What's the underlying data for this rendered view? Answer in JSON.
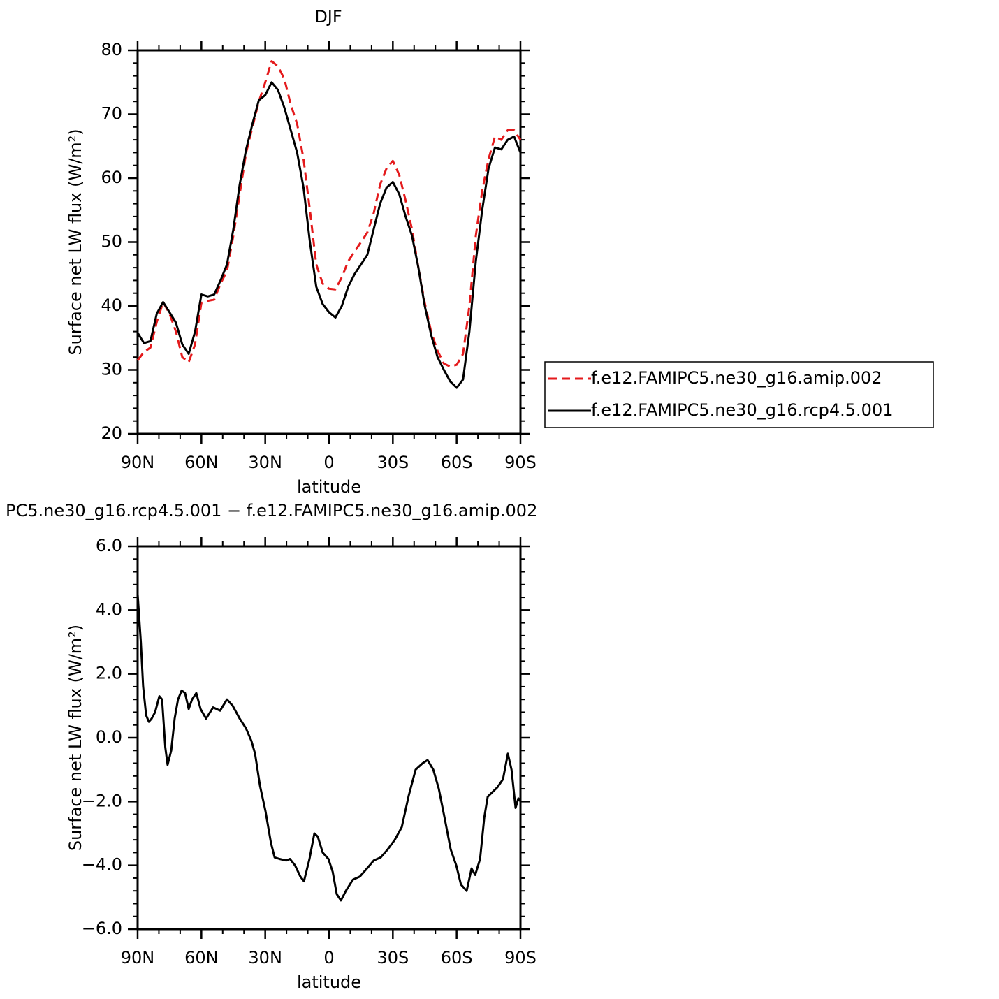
{
  "chart_data": [
    {
      "type": "line",
      "title": "DJF",
      "xlabel": "latitude",
      "ylabel": "Surface net LW flux (W/m²)",
      "x": [
        90,
        87,
        84,
        81,
        78,
        75,
        72,
        69,
        66,
        63,
        60,
        57,
        54,
        51,
        48,
        45,
        42,
        39,
        36,
        33,
        30,
        27,
        24,
        21,
        18,
        15,
        12,
        9,
        6,
        3,
        0,
        -3,
        -6,
        -9,
        -12,
        -15,
        -18,
        -21,
        -24,
        -27,
        -30,
        -33,
        -36,
        -39,
        -42,
        -45,
        -48,
        -51,
        -54,
        -57,
        -60,
        -63,
        -66,
        -69,
        -72,
        -75,
        -78,
        -81,
        -84,
        -87,
        -90
      ],
      "series": [
        {
          "name": "f.e12.FAMIPC5.ne30_g16.amip.002",
          "color": "#e41a1c",
          "dash": true,
          "values": [
            31.5,
            32.8,
            33.5,
            37.5,
            40.6,
            38.8,
            36.0,
            32.0,
            31.2,
            34.0,
            40.5,
            40.8,
            41.0,
            43.5,
            45.5,
            51.0,
            57.5,
            64.0,
            68.0,
            72.0,
            75.0,
            78.3,
            77.5,
            75.5,
            71.5,
            68.5,
            63.0,
            55.0,
            46.5,
            43.5,
            42.7,
            42.6,
            44.5,
            47.0,
            48.5,
            50.0,
            51.5,
            54.5,
            59.0,
            61.5,
            62.7,
            60.5,
            56.5,
            52.0,
            46.0,
            40.5,
            36.0,
            33.0,
            31.0,
            30.5,
            30.8,
            32.5,
            40.0,
            51.0,
            58.0,
            63.0,
            66.5,
            66.0,
            67.5,
            67.5,
            66.0
          ]
        },
        {
          "name": "f.e12.FAMIPC5.ne30_g16.rcp4.5.001",
          "color": "#000000",
          "dash": false,
          "values": [
            35.8,
            34.2,
            34.5,
            38.8,
            40.6,
            39.0,
            37.4,
            34.0,
            32.5,
            36.0,
            41.8,
            41.5,
            41.8,
            44.0,
            46.5,
            52.0,
            59.0,
            64.5,
            68.5,
            72.2,
            73.0,
            75.0,
            73.8,
            71.0,
            67.5,
            64.0,
            58.5,
            50.0,
            43.0,
            40.3,
            39.0,
            38.2,
            40.0,
            43.0,
            45.0,
            46.5,
            48.0,
            52.0,
            56.0,
            58.5,
            59.4,
            57.5,
            54.0,
            51.0,
            46.0,
            40.0,
            35.5,
            32.0,
            30.0,
            28.2,
            27.2,
            28.5,
            36.0,
            47.0,
            55.0,
            61.5,
            64.8,
            64.5,
            66.0,
            66.5,
            64.0
          ]
        }
      ],
      "xlim": [
        90,
        -90
      ],
      "xticks": [
        {
          "value": 90,
          "label": "90N"
        },
        {
          "value": 60,
          "label": "60N"
        },
        {
          "value": 30,
          "label": "30N"
        },
        0,
        {
          "value": -30,
          "label": "30S"
        },
        {
          "value": -60,
          "label": "60S"
        },
        {
          "value": -90,
          "label": "90S"
        }
      ],
      "ylim": [
        20,
        80
      ],
      "yticks": [
        20,
        30,
        40,
        50,
        60,
        70,
        80
      ],
      "legend": "right"
    },
    {
      "type": "line",
      "title": "PC5.ne30_g16.rcp4.5.001 − f.e12.FAMIPC5.ne30_g16.amip.002",
      "xlabel": "latitude",
      "ylabel": "Surface net LW flux (W/m²)",
      "x": [
        90,
        88.5,
        87.4,
        86,
        84.7,
        83.4,
        81.8,
        79.8,
        78.5,
        77,
        75.9,
        74.2,
        72.6,
        71,
        69.3,
        67.7,
        66,
        64.4,
        62.4,
        60.4,
        57.8,
        54.5,
        51.2,
        48,
        45.3,
        42,
        39.1,
        36.5,
        34.8,
        32.5,
        29.9,
        27.3,
        25.6,
        23.3,
        20.1,
        18.4,
        16,
        13.5,
        11.8,
        9.2,
        6.9,
        5.3,
        3,
        0.3,
        -1.7,
        -3.6,
        -5.6,
        -7.9,
        -11.2,
        -14.5,
        -17.8,
        -21,
        -24.3,
        -27.6,
        -30.9,
        -34.2,
        -37.5,
        -40.7,
        -44,
        -46.3,
        -49,
        -51.6,
        -54.3,
        -57.2,
        -59.8,
        -62,
        -64.7,
        -67,
        -68.7,
        -71,
        -73,
        -74.6,
        -76.9,
        -79.2,
        -81.8,
        -84.1,
        -85.8,
        -87.7,
        -89,
        -90
      ],
      "values": [
        4.5,
        3.0,
        1.6,
        0.7,
        0.5,
        0.6,
        0.8,
        1.3,
        1.2,
        -0.3,
        -0.85,
        -0.4,
        0.6,
        1.2,
        1.48,
        1.4,
        0.9,
        1.2,
        1.4,
        0.9,
        0.6,
        0.95,
        0.85,
        1.2,
        1.0,
        0.6,
        0.3,
        -0.1,
        -0.5,
        -1.5,
        -2.3,
        -3.3,
        -3.75,
        -3.8,
        -3.85,
        -3.8,
        -4.0,
        -4.35,
        -4.5,
        -3.8,
        -3.0,
        -3.1,
        -3.6,
        -3.8,
        -4.2,
        -4.9,
        -5.1,
        -4.8,
        -4.45,
        -4.35,
        -4.1,
        -3.85,
        -3.75,
        -3.5,
        -3.2,
        -2.8,
        -1.8,
        -1.0,
        -0.8,
        -0.7,
        -1.0,
        -1.6,
        -2.5,
        -3.5,
        -4.0,
        -4.6,
        -4.8,
        -4.1,
        -4.3,
        -3.8,
        -2.5,
        -1.85,
        -1.7,
        -1.55,
        -1.3,
        -0.5,
        -1.0,
        -2.2,
        -1.9,
        -2.0
      ],
      "color": "#000000",
      "xlim": [
        90,
        -90
      ],
      "xticks": [
        {
          "value": 90,
          "label": "90N"
        },
        {
          "value": 60,
          "label": "60N"
        },
        {
          "value": 30,
          "label": "30N"
        },
        0,
        {
          "value": -30,
          "label": "30S"
        },
        {
          "value": -60,
          "label": "60S"
        },
        {
          "value": -90,
          "label": "90S"
        }
      ],
      "ylim": [
        -6,
        6
      ],
      "yticks": [
        {
          "value": -6,
          "label": "−6.0"
        },
        {
          "value": -4,
          "label": "−4.0"
        },
        {
          "value": -2,
          "label": "−2.0"
        },
        {
          "value": 0,
          "label": "0.0"
        },
        {
          "value": 2,
          "label": "2.0"
        },
        {
          "value": 4,
          "label": "4.0"
        },
        {
          "value": 6,
          "label": "6.0"
        }
      ]
    }
  ]
}
